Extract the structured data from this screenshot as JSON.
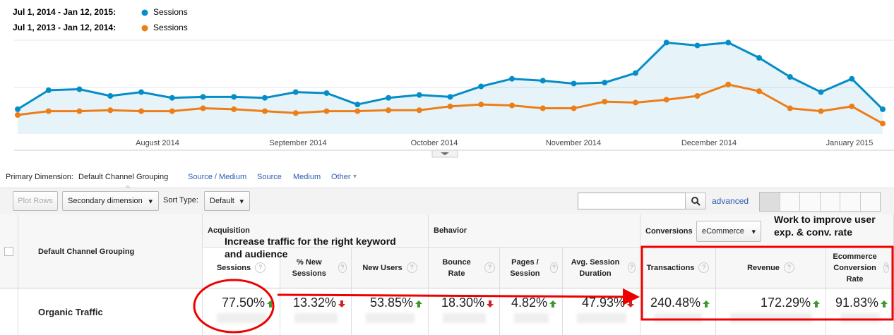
{
  "chart_data": {
    "type": "line",
    "series": [
      {
        "name": "Sessions",
        "period": "Jul 1, 2014 - Jan 12, 2015:",
        "color": "#058dc7",
        "area": true,
        "values": [
          26,
          46,
          47,
          40,
          44,
          38,
          39,
          39,
          38,
          44,
          43,
          31,
          38,
          41,
          39,
          50,
          58,
          56,
          53,
          54,
          64,
          96,
          93,
          96,
          80,
          60,
          44,
          58,
          26
        ]
      },
      {
        "name": "Sessions",
        "period": "Jul 1, 2013 - Jan 12, 2014:",
        "color": "#ed7e17",
        "area": false,
        "values": [
          20,
          24,
          24,
          25,
          24,
          24,
          27,
          26,
          24,
          22,
          24,
          24,
          25,
          25,
          29,
          31,
          30,
          27,
          27,
          34,
          33,
          36,
          40,
          52,
          45,
          27,
          24,
          29,
          11
        ]
      }
    ],
    "ylim": [
      0,
      100
    ],
    "x_tick_labels": [
      "August 2014",
      "September 2014",
      "October 2014",
      "November 2014",
      "December 2014",
      "January 2015"
    ]
  },
  "primary_dimension": {
    "label": "Primary Dimension:",
    "options": [
      "Default Channel Grouping",
      "Source / Medium",
      "Source",
      "Medium",
      "Other"
    ]
  },
  "toolbar": {
    "plot_rows": "Plot Rows",
    "secondary": "Secondary dimension",
    "sort_label": "Sort Type:",
    "sort": "Default",
    "advanced": "advanced"
  },
  "table": {
    "dimension_header": "Default Channel Grouping",
    "groups": [
      "Acquisition",
      "Behavior",
      "Conversions"
    ],
    "conversions_select": "eCommerce",
    "columns": [
      "Sessions",
      "% New Sessions",
      "New Users",
      "Bounce Rate",
      "Pages / Session",
      "Avg. Session Duration",
      "Transactions",
      "Revenue",
      "Ecommerce Conversion Rate"
    ],
    "rows": [
      {
        "label": "Organic Traffic",
        "cells": [
          {
            "value": "77.50%",
            "trend": "up"
          },
          {
            "value": "13.32%",
            "trend": "down"
          },
          {
            "value": "53.85%",
            "trend": "up"
          },
          {
            "value": "18.30%",
            "trend": "down"
          },
          {
            "value": "4.82%",
            "trend": "up"
          },
          {
            "value": "47.93%",
            "trend": "down"
          },
          {
            "value": "240.48%",
            "trend": "up"
          },
          {
            "value": "172.29%",
            "trend": "up"
          },
          {
            "value": "91.83%",
            "trend": "up"
          }
        ]
      }
    ]
  },
  "annotations": [
    "Increase traffic for the right keyword and audience",
    "Work to improve user exp. & conv. rate"
  ]
}
